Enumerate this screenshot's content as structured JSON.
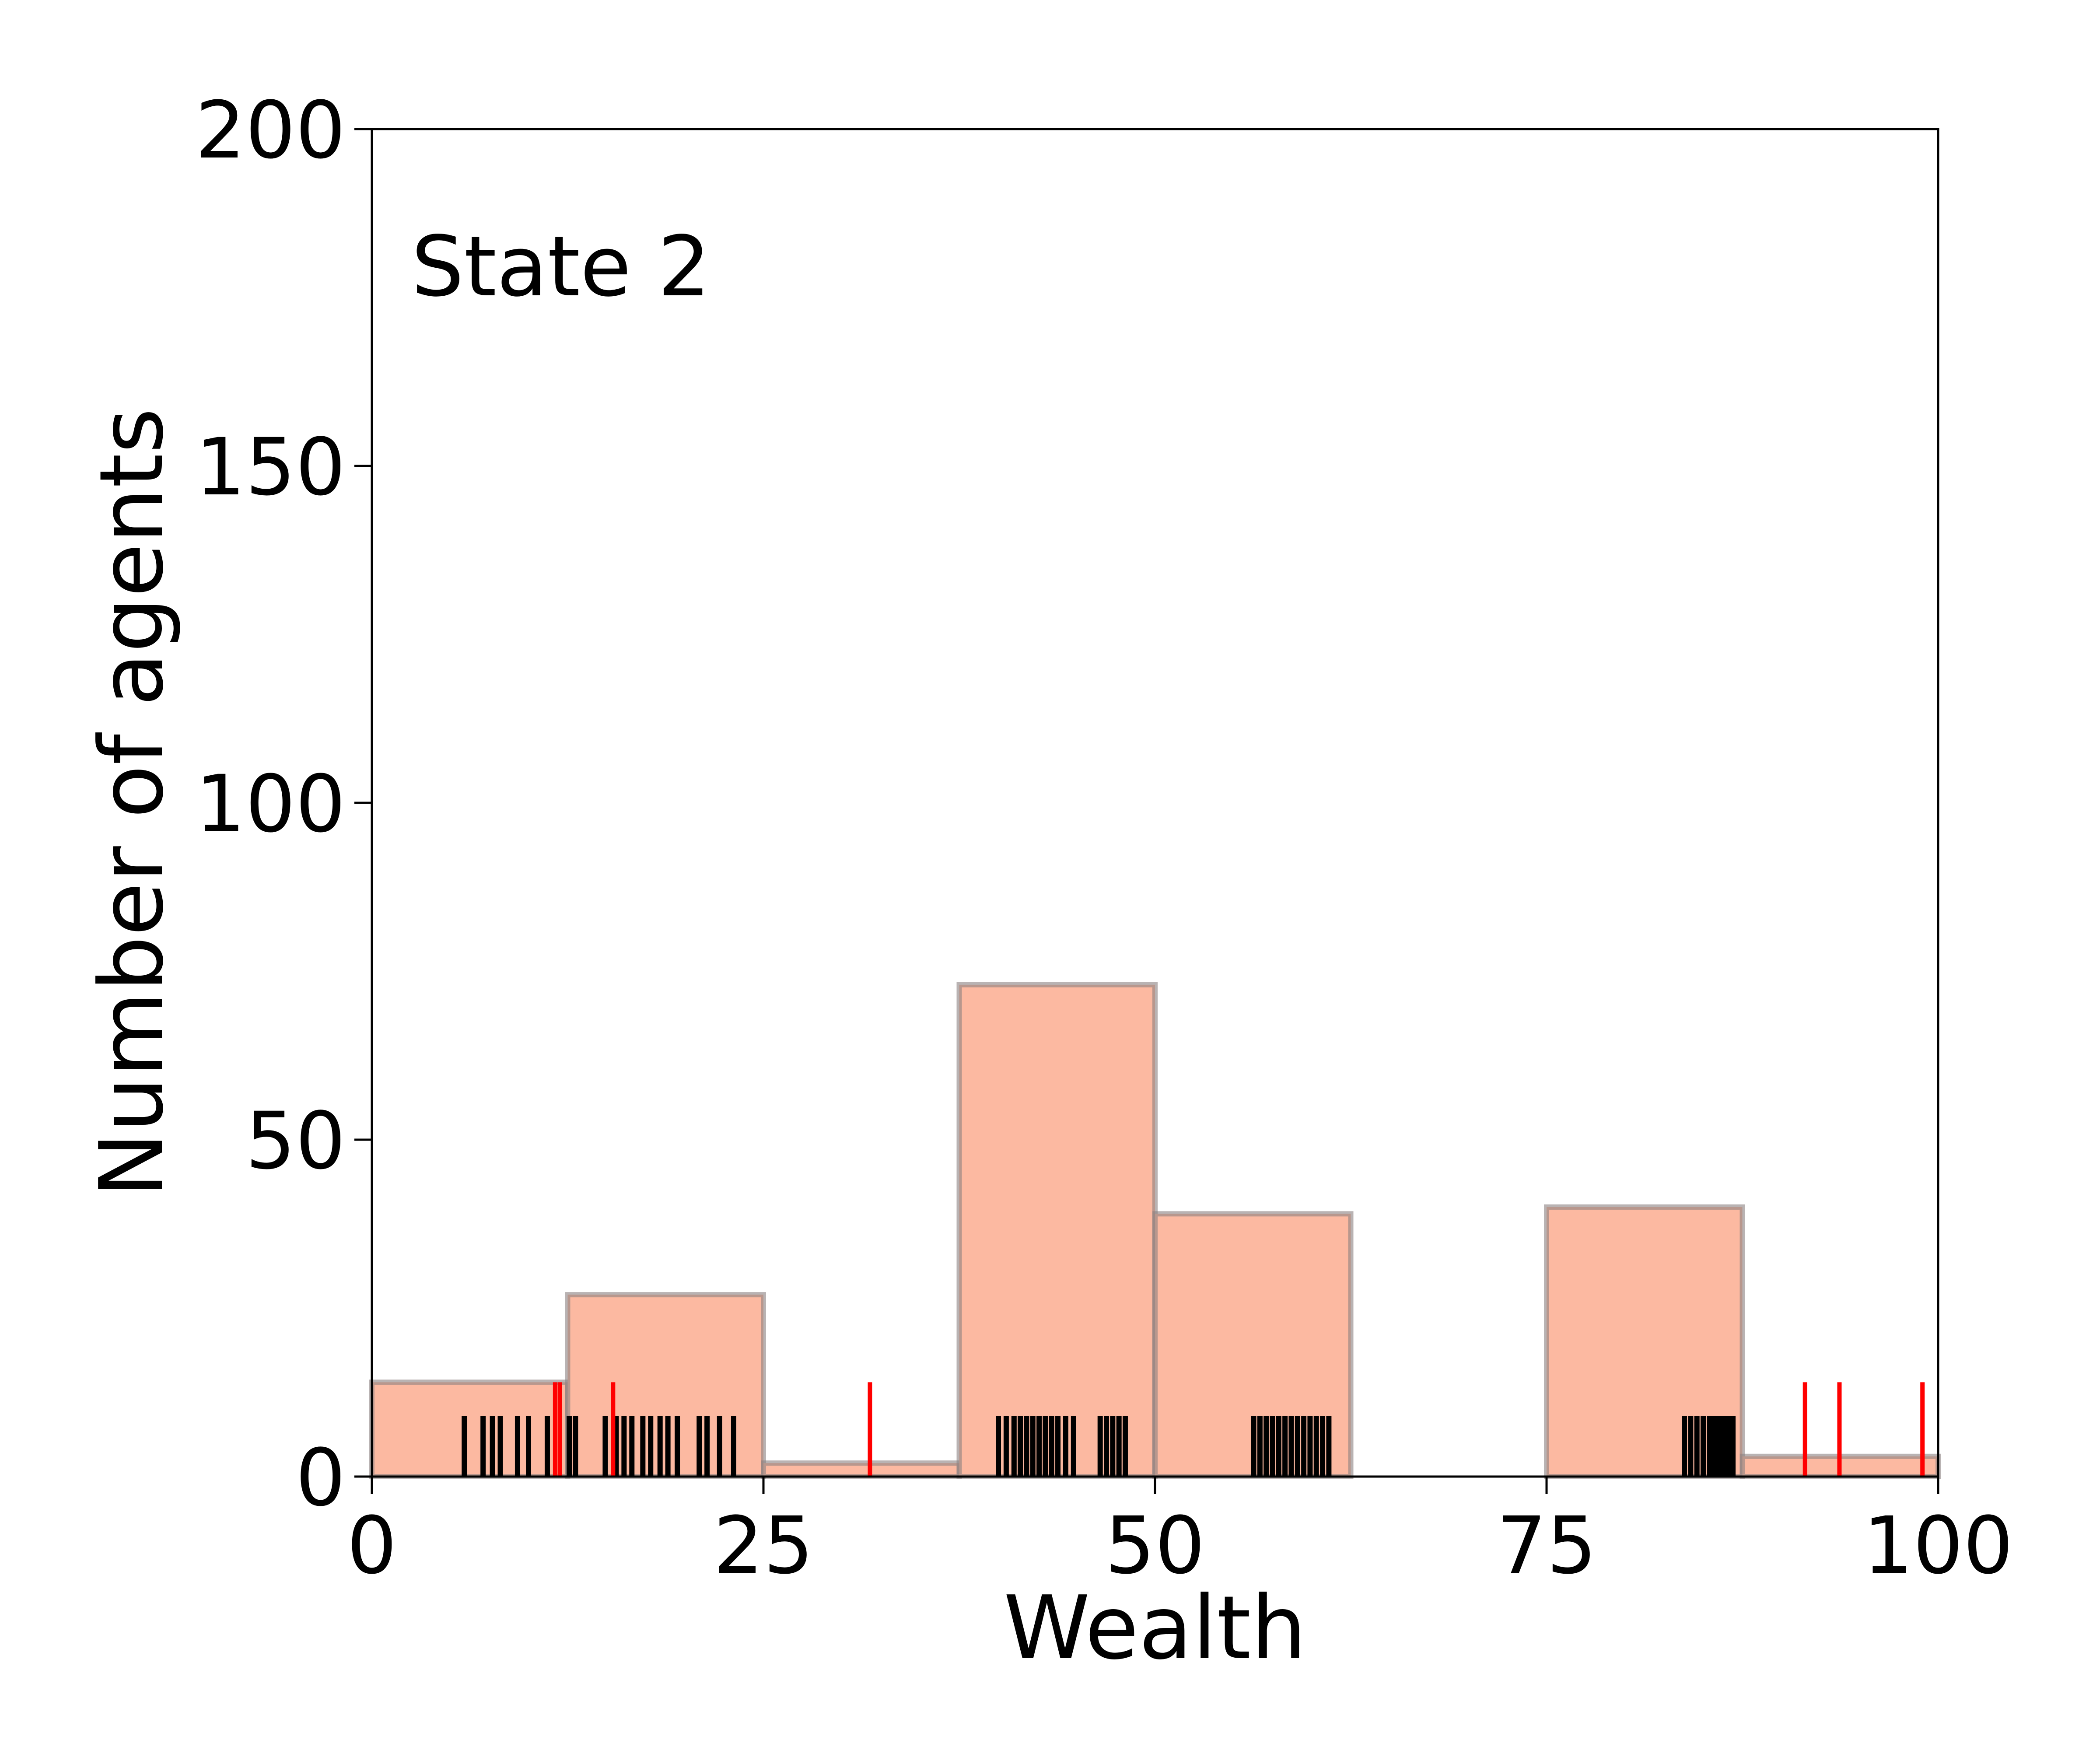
{
  "chart_data": {
    "type": "bar",
    "annotation": "State 2",
    "xlabel": "Wealth",
    "ylabel": "Number of agents",
    "xlim": [
      0,
      100
    ],
    "ylim": [
      0,
      200
    ],
    "xticks": [
      "0",
      "25",
      "50",
      "75",
      "100"
    ],
    "yticks": [
      "0",
      "50",
      "100",
      "150",
      "200"
    ],
    "grid": false,
    "bin_width": 12.5,
    "bins": [
      {
        "x0": 0,
        "x1": 12.5,
        "count": 14
      },
      {
        "x0": 12.5,
        "x1": 25,
        "count": 27
      },
      {
        "x0": 25,
        "x1": 37.5,
        "count": 2
      },
      {
        "x0": 37.5,
        "x1": 50,
        "count": 73
      },
      {
        "x0": 50,
        "x1": 62.5,
        "count": 39
      },
      {
        "x0": 62.5,
        "x1": 75,
        "count": 0
      },
      {
        "x0": 75,
        "x1": 87.5,
        "count": 40
      },
      {
        "x0": 87.5,
        "x1": 100,
        "count": 3
      }
    ],
    "black_rug": [
      5.9,
      7.1,
      7.7,
      8.2,
      9.3,
      10.0,
      11.2,
      12.6,
      13.0,
      14.9,
      15.6,
      16.1,
      16.6,
      17.3,
      17.8,
      18.4,
      18.9,
      19.5,
      20.9,
      21.4,
      22.2,
      23.1,
      40.0,
      40.5,
      41.0,
      41.4,
      41.8,
      42.2,
      42.6,
      43.0,
      43.4,
      43.8,
      44.3,
      44.8,
      46.5,
      46.9,
      47.3,
      47.7,
      48.1,
      56.3,
      56.7,
      57.1,
      57.5,
      57.9,
      58.3,
      58.7,
      59.1,
      59.5,
      59.9,
      60.3,
      60.7,
      61.1,
      83.8,
      84.2,
      84.6,
      85.0,
      85.4,
      85.7,
      86.0,
      86.3,
      86.6,
      86.9
    ],
    "black_rug_height": 9,
    "red_rug": [
      11.7,
      12.0,
      15.4,
      31.8,
      91.5,
      93.7,
      99.0
    ],
    "red_rug_height": 14,
    "colors": {
      "bar_fill": "#fcb9a1",
      "bar_edge": "#8a8080",
      "black_rug": "#000000",
      "red_rug": "#ff0000"
    }
  }
}
